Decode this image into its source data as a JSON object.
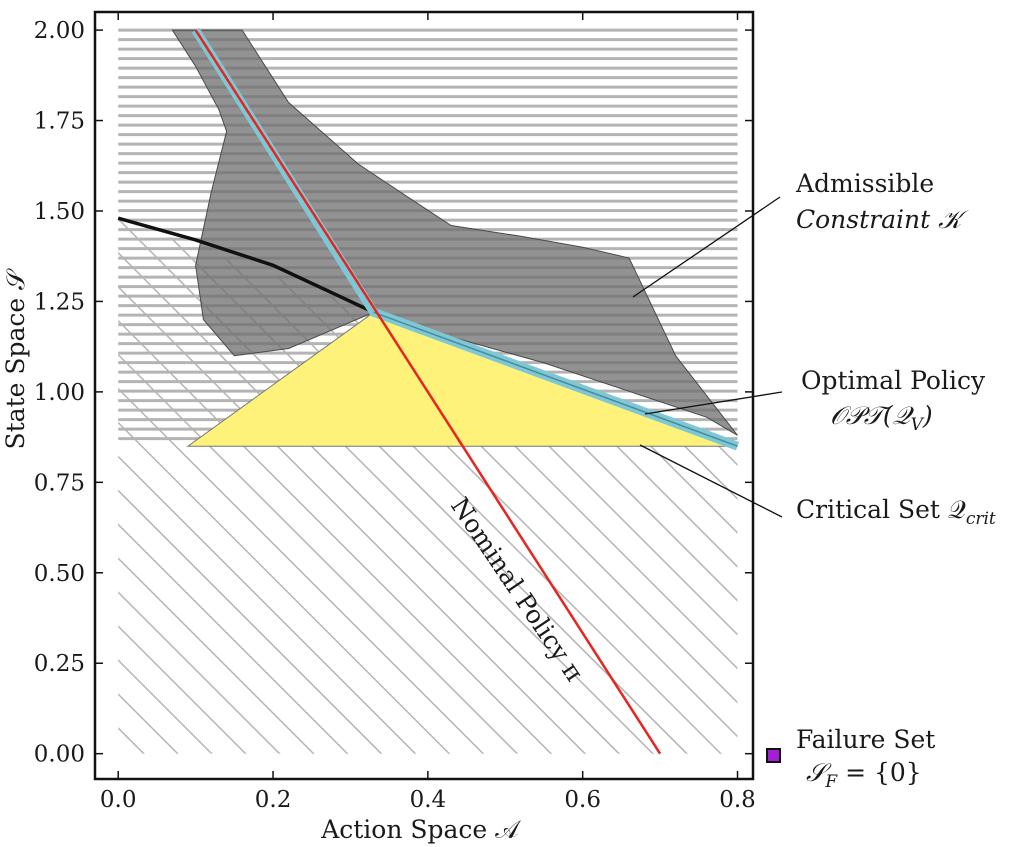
{
  "chart_data": {
    "type": "area",
    "xlabel": "Action Space 𝒜",
    "ylabel": "State Space 𝒮",
    "xlim": [
      -0.03,
      0.82
    ],
    "ylim": [
      -0.07,
      2.05
    ],
    "xticks": [
      0.0,
      0.2,
      0.4,
      0.6,
      0.8
    ],
    "xtick_labels": [
      "0.0",
      "0.2",
      "0.4",
      "0.6",
      "0.8"
    ],
    "yticks": [
      0.0,
      0.25,
      0.5,
      0.75,
      1.0,
      1.25,
      1.5,
      1.75,
      2.0
    ],
    "ytick_labels": [
      "0.00",
      "0.25",
      "0.50",
      "0.75",
      "1.00",
      "1.25",
      "1.50",
      "1.75",
      "2.00"
    ],
    "colors": {
      "admissible_fill": "#6e6e6e",
      "critical_fill": "#fff27a",
      "optimal_line": "#7ec8d6",
      "nominal_line": "#e8241f",
      "black_curve": "#111111",
      "hatch": "#b4b4b4",
      "failure_marker": "#a21fd6"
    },
    "regions": {
      "admissible_constraint": [
        [
          0.07,
          2.0
        ],
        [
          0.16,
          2.0
        ],
        [
          0.22,
          1.8
        ],
        [
          0.31,
          1.63
        ],
        [
          0.38,
          1.53
        ],
        [
          0.43,
          1.46
        ],
        [
          0.52,
          1.43
        ],
        [
          0.6,
          1.4
        ],
        [
          0.66,
          1.37
        ],
        [
          0.72,
          1.1
        ],
        [
          0.8,
          0.88
        ],
        [
          0.76,
          0.93
        ],
        [
          0.55,
          1.08
        ],
        [
          0.4,
          1.17
        ],
        [
          0.33,
          1.22
        ],
        [
          0.22,
          1.12
        ],
        [
          0.15,
          1.1
        ],
        [
          0.11,
          1.2
        ],
        [
          0.1,
          1.35
        ],
        [
          0.12,
          1.55
        ],
        [
          0.14,
          1.72
        ],
        [
          0.13,
          1.78
        ],
        [
          0.1,
          1.9
        ],
        [
          0.07,
          2.0
        ]
      ],
      "critical_set": [
        [
          0.33,
          1.22
        ],
        [
          0.8,
          0.85
        ],
        [
          0.09,
          0.85
        ]
      ],
      "hatched_region_upper_boundary": [
        [
          0.0,
          1.48
        ],
        [
          0.33,
          1.22
        ],
        [
          0.8,
          0.85
        ]
      ]
    },
    "series": [
      {
        "name": "Nominal Policy π",
        "x": [
          0.1,
          0.7
        ],
        "y": [
          2.0,
          0.0
        ]
      },
      {
        "name": "Optimal Policy 𝒪𝒫𝒯(𝒬_V)",
        "x": [
          0.1,
          0.33,
          0.8
        ],
        "y": [
          2.0,
          1.22,
          0.85
        ]
      },
      {
        "x": [
          0.0,
          0.1,
          0.2,
          0.28,
          0.33
        ],
        "y": [
          1.48,
          1.42,
          1.35,
          1.27,
          1.22
        ]
      }
    ],
    "failure_set_marker": {
      "x": 0.0
    }
  },
  "annotations": {
    "admissible_line1": "Admissible",
    "admissible_line2": "Constraint 𝒦",
    "optimal_line1": "Optimal Policy",
    "optimal_line2": "𝒪𝒫𝒯(𝒬",
    "optimal_sub": "V",
    "optimal_close": ")",
    "critical_prefix": "Critical Set 𝒬",
    "critical_sub": "crit",
    "nominal": "Nominal Policy π",
    "failure_line1": "Failure Set",
    "failure_line2_a": "𝒮",
    "failure_line2_sub": "F",
    "failure_line2_b": " = {0}"
  }
}
